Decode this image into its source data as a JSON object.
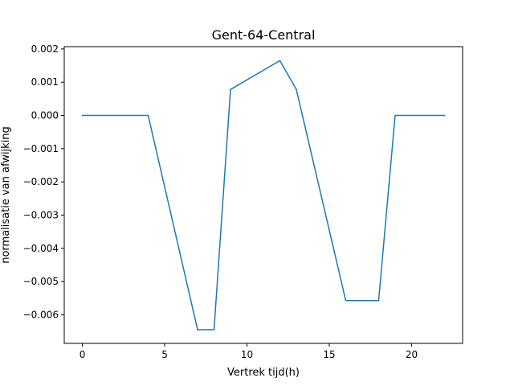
{
  "chart_data": {
    "type": "line",
    "title": "Gent-64-Central",
    "xlabel": "Vertrek tijd(h)",
    "ylabel": "normalisatie van afwijking",
    "xlim": [
      -1.1,
      23.1
    ],
    "ylim": [
      -0.00686,
      0.00207
    ],
    "xticks": [
      0,
      5,
      10,
      15,
      20
    ],
    "yticks": [
      0.002,
      0.001,
      0.0,
      -0.001,
      -0.002,
      -0.003,
      -0.004,
      -0.005,
      -0.006
    ],
    "ytick_labels": [
      "0.002",
      "0.001",
      "0.000",
      "−0.001",
      "−0.002",
      "−0.003",
      "−0.004",
      "−0.005",
      "−0.006"
    ],
    "grid": false,
    "series": [
      {
        "color": "#1f77b4",
        "x": [
          0,
          4,
          7,
          8,
          9,
          12,
          13,
          16,
          18,
          19,
          22
        ],
        "y": [
          0.0,
          0.0,
          -0.00645,
          -0.00645,
          0.00078,
          0.00165,
          0.00078,
          -0.00557,
          -0.00557,
          0.0,
          0.0
        ]
      }
    ]
  }
}
